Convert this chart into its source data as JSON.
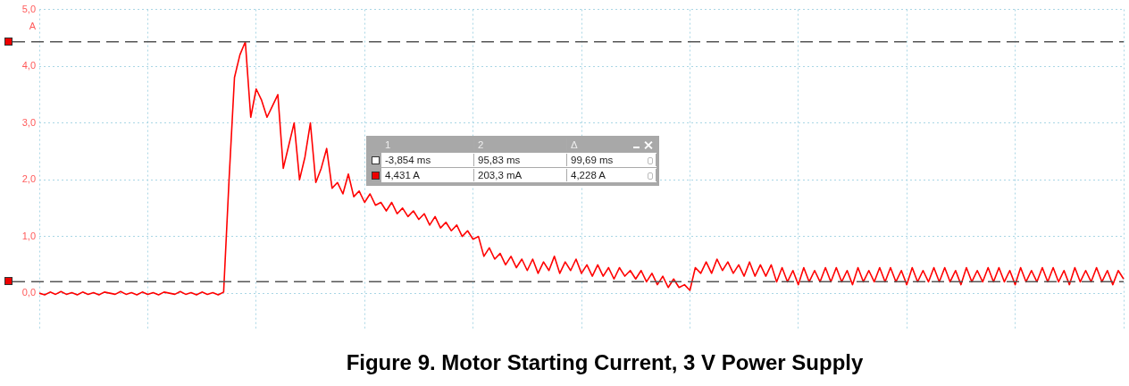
{
  "chart_data": {
    "type": "line",
    "title": "Figure 9. Motor Starting Current, 3 V Power Supply",
    "ylabel": "A",
    "color": "#ff0000",
    "categories": [
      null,
      null,
      null,
      null,
      null,
      null,
      null,
      null,
      null,
      null,
      null,
      null,
      null,
      null,
      null,
      null,
      null,
      null,
      null,
      null,
      null,
      null,
      null,
      null,
      null,
      null,
      null,
      null,
      null,
      null,
      null,
      null,
      null,
      null,
      null,
      null,
      null,
      null,
      null,
      null,
      null,
      null,
      null,
      null,
      null,
      null,
      null,
      null,
      null,
      null,
      null,
      null,
      null,
      null,
      null,
      null,
      null,
      null,
      null,
      null,
      null,
      null,
      null,
      null,
      null,
      null,
      null,
      null,
      null,
      null,
      null,
      null,
      null,
      null,
      null,
      null,
      null,
      null,
      null,
      null,
      null,
      null,
      null,
      null,
      null,
      null,
      null,
      null,
      null,
      null,
      null,
      null,
      null,
      null,
      null,
      null,
      null,
      null,
      null,
      null,
      null,
      null,
      null,
      null,
      null,
      null,
      null,
      null,
      null,
      null,
      null,
      null,
      null,
      null,
      null,
      null,
      null,
      null,
      null,
      null,
      null,
      null,
      null,
      null,
      null,
      null,
      null,
      null,
      null,
      null,
      null,
      null,
      null,
      null,
      null,
      null,
      null,
      null,
      null,
      null,
      null,
      null,
      null,
      null,
      null,
      null,
      null,
      null,
      null,
      null,
      null,
      null,
      null,
      null,
      null,
      null,
      null,
      null,
      null,
      null,
      null,
      null,
      null,
      null,
      null,
      null,
      null,
      null,
      null,
      null,
      null,
      null,
      null,
      null,
      null,
      null,
      null,
      null,
      null,
      null,
      null,
      null,
      null,
      null,
      null,
      null,
      null,
      null,
      null,
      null,
      null,
      null,
      null,
      null,
      null,
      null,
      null,
      null,
      null,
      null,
      null
    ],
    "values": [
      0.0,
      -0.03,
      0.02,
      -0.02,
      0.03,
      -0.02,
      0.01,
      -0.03,
      0.02,
      -0.02,
      0.01,
      -0.03,
      0.02,
      0.0,
      -0.02,
      0.03,
      -0.02,
      0.01,
      -0.03,
      0.02,
      -0.02,
      0.01,
      -0.03,
      0.02,
      0.0,
      -0.02,
      0.03,
      -0.02,
      0.01,
      -0.03,
      0.02,
      -0.02,
      0.01,
      -0.03,
      0.02,
      2.0,
      3.8,
      4.2,
      4.43,
      3.1,
      3.6,
      3.4,
      3.1,
      3.3,
      3.5,
      2.2,
      2.6,
      3.0,
      2.0,
      2.4,
      3.0,
      1.95,
      2.2,
      2.55,
      1.85,
      1.95,
      1.75,
      2.1,
      1.7,
      1.8,
      1.6,
      1.75,
      1.55,
      1.6,
      1.45,
      1.6,
      1.4,
      1.5,
      1.35,
      1.45,
      1.3,
      1.4,
      1.2,
      1.35,
      1.15,
      1.25,
      1.1,
      1.2,
      1.0,
      1.1,
      0.95,
      1.0,
      0.65,
      0.8,
      0.6,
      0.7,
      0.5,
      0.65,
      0.45,
      0.6,
      0.4,
      0.6,
      0.35,
      0.55,
      0.4,
      0.65,
      0.35,
      0.55,
      0.4,
      0.6,
      0.35,
      0.5,
      0.3,
      0.5,
      0.3,
      0.45,
      0.25,
      0.45,
      0.3,
      0.4,
      0.25,
      0.4,
      0.2,
      0.35,
      0.15,
      0.3,
      0.1,
      0.25,
      0.1,
      0.15,
      0.05,
      0.45,
      0.35,
      0.55,
      0.35,
      0.6,
      0.4,
      0.55,
      0.35,
      0.5,
      0.3,
      0.55,
      0.3,
      0.5,
      0.3,
      0.5,
      0.2,
      0.45,
      0.2,
      0.4,
      0.15,
      0.45,
      0.2,
      0.4,
      0.2,
      0.45,
      0.2,
      0.45,
      0.2,
      0.4,
      0.15,
      0.45,
      0.2,
      0.4,
      0.2,
      0.45,
      0.2,
      0.45,
      0.2,
      0.4,
      0.15,
      0.45,
      0.2,
      0.4,
      0.2,
      0.45,
      0.2,
      0.45,
      0.2,
      0.4,
      0.15,
      0.45,
      0.2,
      0.4,
      0.2,
      0.45,
      0.2,
      0.45,
      0.2,
      0.4,
      0.15,
      0.45,
      0.2,
      0.4,
      0.2,
      0.45,
      0.2,
      0.45,
      0.2,
      0.4,
      0.15,
      0.45,
      0.2,
      0.4,
      0.2,
      0.45,
      0.2,
      0.4,
      0.15,
      0.4,
      0.25
    ],
    "ylim": [
      -0.65,
      5
    ],
    "yticks": [
      {
        "value": 0,
        "label": "0,0"
      },
      {
        "value": 1,
        "label": "1,0"
      },
      {
        "value": 2,
        "label": "2,0"
      },
      {
        "value": 3,
        "label": "3,0"
      },
      {
        "value": 4,
        "label": "4,0"
      },
      {
        "value": 5,
        "label": "5,0"
      }
    ],
    "grid": true,
    "tick_labels": "y",
    "ref_lines": [
      {
        "axis": "y",
        "value": 4.431,
        "color": "#555555",
        "line_style": "dashed"
      },
      {
        "axis": "y",
        "value": 0.2033,
        "color": "#555555",
        "line_style": "dashed"
      }
    ],
    "annotations": [
      "1",
      "2",
      "Δ",
      "-3,854 ms",
      "95,83 ms",
      "99,69 ms",
      "4,431 A",
      "203,3 mA",
      "4,228 A"
    ]
  }
}
